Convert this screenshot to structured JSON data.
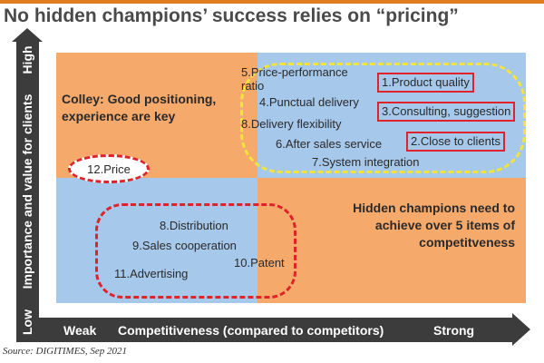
{
  "title": "No hidden champions’ success relies on “pricing”",
  "axes": {
    "y_label": "Importance and value for clients",
    "y_high": "High",
    "y_low": "Low",
    "x_label": "Competitiveness (compared to competitors)",
    "x_weak": "Weak",
    "x_strong": "Strong"
  },
  "colors": {
    "orange_quadrant": "#f5a96b",
    "blue_quadrant": "#a6c8ea",
    "red_highlight": "#e0232a",
    "yellow_group": "#f2e43c",
    "axis": "#3c3c3c",
    "top_rule": "#e07b20"
  },
  "notes": {
    "colley_name": "Colley",
    "colley_text": ": Good positioning,",
    "colley_line2": "experience are key",
    "hidden_line1": "Hidden champions need to",
    "hidden_line2": "achieve over 5 items of",
    "hidden_line3": "competitveness"
  },
  "items": {
    "price_performance_1": "5.Price-performance",
    "price_performance_2": "ratio",
    "punctual_delivery": "4.Punctual delivery",
    "delivery_flexibility": "8.Delivery flexibility",
    "after_sales": "6.After sales service",
    "system_integration": "7.System integration",
    "product_quality": "1.Product quality",
    "consulting": "3.Consulting, suggestion",
    "close_to_clients": "2.Close to clients",
    "price": "12.Price",
    "distribution": "8.Distribution",
    "sales_cooperation": "9.Sales cooperation",
    "advertising": "11.Advertising",
    "patent": "10.Patent"
  },
  "source": "Source: DIGITIMES, Sep 2021"
}
